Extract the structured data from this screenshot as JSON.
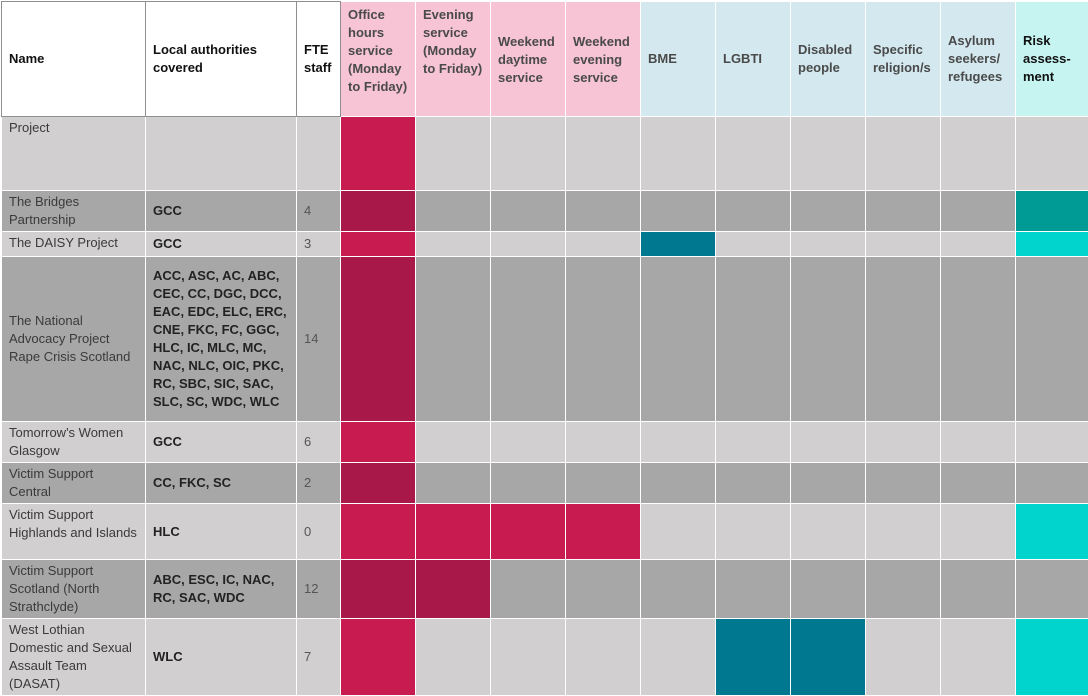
{
  "columns": [
    {
      "label": "Name"
    },
    {
      "label": "Local authorities covered"
    },
    {
      "label": "FTE staff"
    },
    {
      "label": "Office hours service (Monday to Friday)"
    },
    {
      "label": "Evening service (Monday to Friday)"
    },
    {
      "label": "Weekend daytime service"
    },
    {
      "label": "Weekend evening service"
    },
    {
      "label": "BME"
    },
    {
      "label": "LGBTI"
    },
    {
      "label": "Disabled people"
    },
    {
      "label": "Specific religion/s"
    },
    {
      "label": "Asylum seekers/ refugees"
    },
    {
      "label": "Risk assess-ment"
    }
  ],
  "colors": {
    "service_marked": "#c81c51",
    "service_marked_dark_row": "#a81848",
    "group_marked": "#00788f",
    "risk_marked": "#00d4cc",
    "risk_marked_dark_row": "#009b94",
    "row_light": "#d1cfd0",
    "row_dark": "#a7a7a7"
  },
  "rows": [
    {
      "name": "Project",
      "las": "",
      "fte": ""
    },
    {
      "name": "The Bridges Partnership",
      "las": "GCC",
      "fte": "4"
    },
    {
      "name": "The DAISY Project",
      "las": "GCC",
      "fte": "3"
    },
    {
      "name": "The National Advocacy Project Rape Crisis Scotland",
      "las": "ACC, ASC, AC, ABC, CEC, CC, DGC, DCC, EAC, EDC, ELC, ERC, CNE, FKC, FC, GGC, HLC, IC, MLC, MC, NAC, NLC, OIC, PKC, RC, SBC, SIC, SAC, SLC, SC, WDC, WLC",
      "fte": "14"
    },
    {
      "name": "Tomorrow's Women Glasgow",
      "las": "GCC",
      "fte": "6"
    },
    {
      "name": "Victim Support Central",
      "las": "CC, FKC, SC",
      "fte": "2"
    },
    {
      "name": "Victim Support Highlands and Islands",
      "las": "HLC",
      "fte": "0"
    },
    {
      "name": "Victim Support Scotland (North Strathclyde)",
      "las": "ABC, ESC, IC, NAC, RC, SAC, WDC",
      "fte": "12"
    },
    {
      "name": "West Lothian Domestic and Sexual Assault Team (DASAT)",
      "las": "WLC",
      "fte": "7"
    }
  ]
}
